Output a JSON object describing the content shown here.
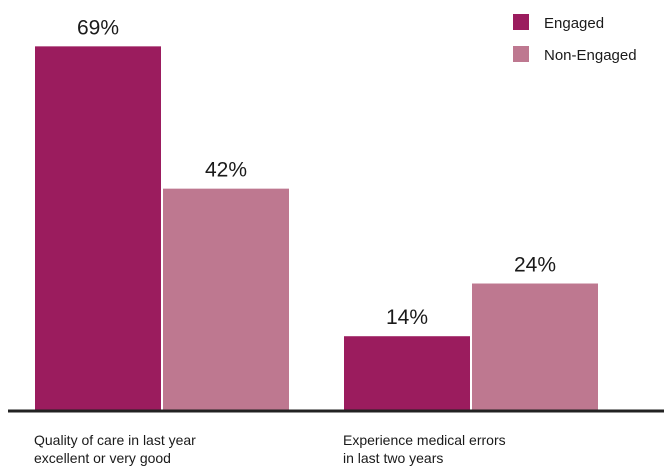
{
  "chart_data": {
    "type": "bar",
    "title": "",
    "xlabel": "",
    "ylabel": "",
    "ylim": [
      0,
      74
    ],
    "grid": false,
    "legend_position": "top-right",
    "categories": [
      [
        "Quality of care in last year",
        "excellent or very good"
      ],
      [
        "Experience medical errors",
        "in last two years"
      ]
    ],
    "series": [
      {
        "name": "Engaged",
        "values": [
          69,
          14
        ],
        "labels": [
          "69%",
          "14%"
        ],
        "color": "#9b1c5e"
      },
      {
        "name": "Non-Engaged",
        "values": [
          42,
          24
        ],
        "labels": [
          "42%",
          "24%"
        ],
        "color": "#be7890"
      }
    ]
  }
}
